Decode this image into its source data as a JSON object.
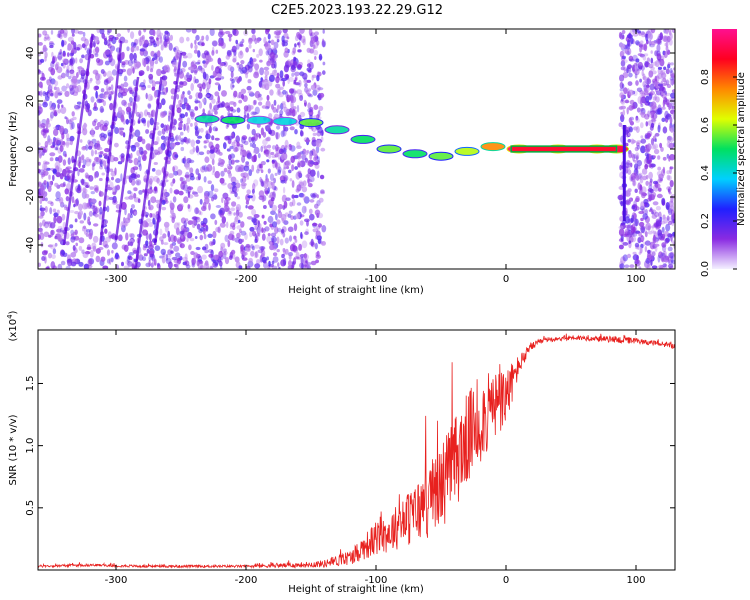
{
  "figure": {
    "title": "C2E5.2023.193.22.29.G12",
    "palette": {
      "axis": "#000000",
      "snr_line": "#e8211f"
    }
  },
  "chart_data": [
    {
      "type": "heatmap",
      "xlabel": "Height of straight line (km)",
      "ylabel": "Frequency (Hz)",
      "xlim": [
        -360,
        130
      ],
      "ylim": [
        -50,
        50
      ],
      "x_ticks": [
        -300,
        -200,
        -100,
        0,
        100
      ],
      "x_tick_labels": [
        "-300",
        "-200",
        "-100",
        "0",
        "100"
      ],
      "y_ticks": [
        -40,
        -20,
        0,
        20,
        40
      ],
      "y_tick_labels": [
        "-40",
        "-20",
        "0",
        "20",
        "40"
      ],
      "grid": false,
      "colorbar": {
        "label": "Normalized spectral amplitude",
        "range": [
          0,
          1
        ],
        "ticks": [
          0.0,
          0.2,
          0.4,
          0.6,
          0.8
        ],
        "tick_labels": [
          "0.0",
          "0.2",
          "0.4",
          "0.6",
          "0.8"
        ],
        "colors": [
          "#f4f0ff",
          "#8a2be2",
          "#2020ff",
          "#00d0ff",
          "#00e060",
          "#e0ff00",
          "#ff8800",
          "#ff0020",
          "#ff1090"
        ]
      },
      "series": [
        {
          "values": [
            {
              "x": -230,
              "y": 12.5,
              "a": 0.45
            },
            {
              "x": -210,
              "y": 12.0,
              "a": 0.5
            },
            {
              "x": -190,
              "y": 12.0,
              "a": 0.4
            },
            {
              "x": -170,
              "y": 11.5,
              "a": 0.4
            },
            {
              "x": -150,
              "y": 11.0,
              "a": 0.55
            },
            {
              "x": -130,
              "y": 8.0,
              "a": 0.45
            },
            {
              "x": -110,
              "y": 4.0,
              "a": 0.5
            },
            {
              "x": -90,
              "y": 0.0,
              "a": 0.55
            },
            {
              "x": -70,
              "y": -2.0,
              "a": 0.5
            },
            {
              "x": -50,
              "y": -3.0,
              "a": 0.55
            },
            {
              "x": -30,
              "y": -1.0,
              "a": 0.6
            },
            {
              "x": -10,
              "y": 1.0,
              "a": 0.75
            },
            {
              "x": 10,
              "y": 0.0,
              "a": 0.95
            },
            {
              "x": 40,
              "y": 0.0,
              "a": 0.95
            },
            {
              "x": 70,
              "y": 0.0,
              "a": 0.95
            },
            {
              "x": 85,
              "y": 0.0,
              "a": 0.9
            }
          ]
        }
      ]
    },
    {
      "type": "line",
      "xlabel": "Height of straight line (km)",
      "ylabel": "SNR (10 * v/v)",
      "y_multiplier_label": "(x10",
      "y_multiplier_exp": "4",
      "y_multiplier_close": ")",
      "xlim": [
        -360,
        130
      ],
      "ylim": [
        0,
        1.93
      ],
      "x_ticks": [
        -300,
        -200,
        -100,
        0,
        100
      ],
      "x_tick_labels": [
        "-300",
        "-200",
        "-100",
        "0",
        "100"
      ],
      "y_ticks": [
        0.5,
        1.0,
        1.5
      ],
      "y_tick_labels": [
        "0.5",
        "1.0",
        "1.5"
      ],
      "grid": false,
      "series": [
        {
          "x": [
            -360,
            -320,
            -280,
            -240,
            -200,
            -160,
            -140,
            -120,
            -110,
            -100,
            -90,
            -80,
            -70,
            -60,
            -50,
            -40,
            -30,
            -20,
            -10,
            0,
            10,
            20,
            30,
            50,
            70,
            90,
            110,
            130
          ],
          "y": [
            0.03,
            0.04,
            0.03,
            0.03,
            0.03,
            0.04,
            0.05,
            0.1,
            0.18,
            0.25,
            0.3,
            0.38,
            0.45,
            0.55,
            0.68,
            0.85,
            1.05,
            1.2,
            1.3,
            1.38,
            1.65,
            1.8,
            1.85,
            1.87,
            1.86,
            1.85,
            1.83,
            1.8
          ],
          "noise": [
            0.01,
            0.01,
            0.01,
            0.01,
            0.01,
            0.02,
            0.03,
            0.06,
            0.1,
            0.14,
            0.16,
            0.2,
            0.25,
            0.3,
            0.35,
            0.38,
            0.38,
            0.35,
            0.3,
            0.25,
            0.08,
            0.03,
            0.02,
            0.02,
            0.02,
            0.03,
            0.02,
            0.02
          ]
        }
      ]
    }
  ]
}
